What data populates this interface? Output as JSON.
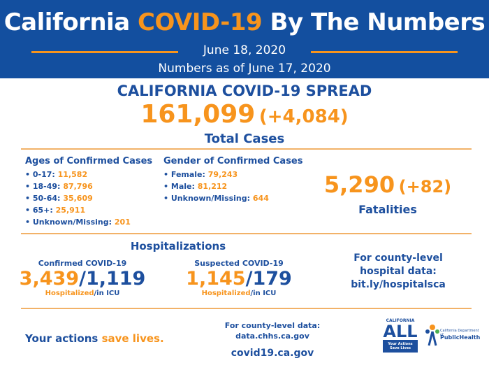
{
  "header": {
    "title": [
      "California",
      "COVID-19",
      "By The Numbers"
    ],
    "date": "June 18, 2020",
    "as_of": "Numbers as of June 17, 2020"
  },
  "spread": {
    "title": "CALIFORNIA COVID-19 SPREAD",
    "total": "161,099",
    "change": "(+4,084)",
    "label": "Total Cases"
  },
  "ages": {
    "title": "Ages of Confirmed Cases",
    "items": [
      {
        "label": "0-17:",
        "value": "11,582"
      },
      {
        "label": "18-49:",
        "value": "87,796"
      },
      {
        "label": "50-64:",
        "value": "35,609"
      },
      {
        "label": "65+:",
        "value": "25,911"
      },
      {
        "label": "Unknown/Missing:",
        "value": "201"
      }
    ]
  },
  "gender": {
    "title": "Gender of Confirmed Cases",
    "items": [
      {
        "label": "Female:",
        "value": "79,243"
      },
      {
        "label": "Male:",
        "value": "81,212"
      },
      {
        "label": "Unknown/Missing:",
        "value": "644"
      }
    ]
  },
  "fatalities": {
    "total": "5,290",
    "change": "(+82)",
    "label": "Fatalities"
  },
  "hospitalizations": {
    "title": "Hospitalizations",
    "separator": "/",
    "confirmed": {
      "label": "Confirmed COVID-19",
      "hospitalized": "3,439",
      "icu": "1,119"
    },
    "suspected": {
      "label": "Suspected COVID-19",
      "hospitalized": "1,145",
      "icu": "179"
    },
    "caption_hospitalized": "Hospitalized",
    "caption_icu": "in ICU"
  },
  "county": {
    "lines": [
      "For county-level",
      "hospital data:",
      "bit.ly/hospitalsca"
    ]
  },
  "footer": {
    "actions": [
      "Your actions",
      "save lives."
    ],
    "data_label": "For county-level data:",
    "data_url": "data.chhs.ca.gov",
    "site": "covid19.ca.gov",
    "logo_ca": [
      "CALIFORNIA",
      "ALL",
      "Your Actions Save Lives"
    ],
    "logo_ph": [
      "California Department of",
      "PublicHealth"
    ]
  }
}
